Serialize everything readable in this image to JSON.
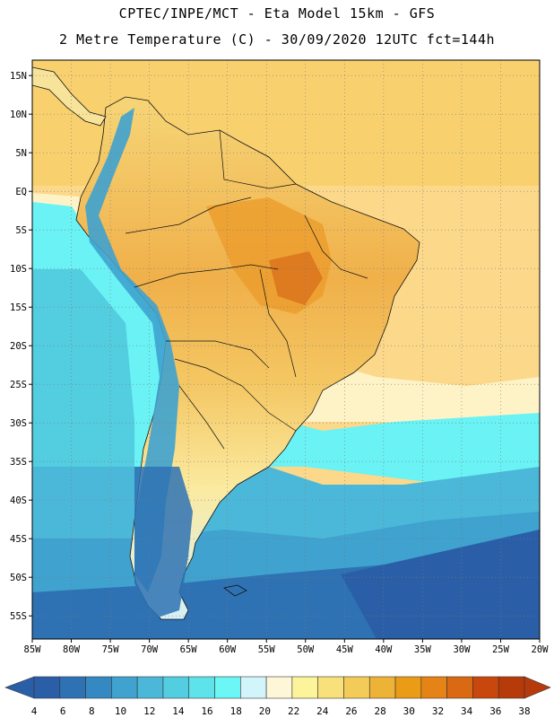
{
  "title_line1": "CPTEC/INPE/MCT - Eta Model 15km - GFS",
  "title_line2": "2 Metre Temperature (C) - 30/09/2020 12UTC fct=144h",
  "map": {
    "lon_range": [
      -85,
      -20
    ],
    "lat_range": [
      -58,
      17
    ],
    "lat_ticks": [
      "15N",
      "10N",
      "5N",
      "EQ",
      "5S",
      "10S",
      "15S",
      "20S",
      "25S",
      "30S",
      "35S",
      "40S",
      "45S",
      "50S",
      "55S"
    ],
    "lon_ticks": [
      "85W",
      "80W",
      "75W",
      "70W",
      "65W",
      "60W",
      "55W",
      "50W",
      "45W",
      "40W",
      "35W",
      "30W",
      "25W",
      "20W"
    ],
    "grid": "dotted"
  },
  "colorbar": {
    "labels": [
      "4",
      "6",
      "8",
      "10",
      "12",
      "14",
      "16",
      "18",
      "20",
      "22",
      "24",
      "26",
      "28",
      "30",
      "32",
      "34",
      "36",
      "38"
    ],
    "colors": [
      "#2a5fa8",
      "#2e72b4",
      "#3589c2",
      "#3fa2cf",
      "#4cb8d9",
      "#53cde0",
      "#5fe3ea",
      "#6af7f5",
      "#d2f4fb",
      "#fdf7d8",
      "#fdf39a",
      "#f8e07a",
      "#f3cb58",
      "#edb336",
      "#eb9c17",
      "#e58316",
      "#d96912",
      "#c8470c",
      "#b73a0a"
    ]
  }
}
